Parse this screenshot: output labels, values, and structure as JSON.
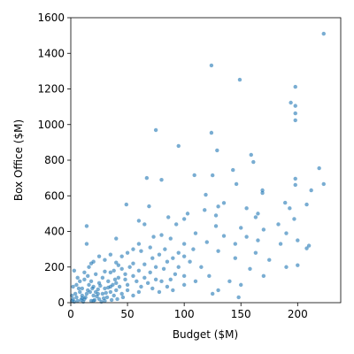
{
  "chart_data": {
    "type": "scatter",
    "xlabel": "Budget ($M)",
    "ylabel": "Box Office ($M)",
    "color": "#1f77b4",
    "xlim": [
      0,
      238
    ],
    "ylim": [
      0,
      1600
    ],
    "xticks": [
      0,
      50,
      100,
      150,
      200
    ],
    "yticks": [
      0,
      200,
      400,
      600,
      800,
      1000,
      1200,
      1400,
      1600
    ],
    "x": [
      223,
      124,
      149,
      198,
      194,
      198,
      198,
      198,
      75,
      95,
      124,
      129,
      159,
      161,
      143,
      219,
      109,
      67,
      80,
      125,
      198,
      198,
      223,
      212,
      169,
      169,
      119,
      146,
      49,
      69,
      189,
      208,
      193,
      135,
      130,
      155,
      103,
      118,
      165,
      128,
      163,
      86,
      60,
      65,
      197,
      183,
      170,
      150,
      128,
      100,
      93,
      14,
      14,
      40,
      80,
      73,
      110,
      135,
      155,
      145,
      190,
      200,
      210,
      208,
      185,
      165,
      120,
      100,
      88,
      60,
      55,
      70,
      83,
      108,
      130,
      163,
      145,
      175,
      190,
      200,
      158,
      170,
      150,
      140,
      130,
      148,
      115,
      122,
      125,
      100,
      95,
      90,
      85,
      78,
      72,
      62,
      50,
      45,
      35,
      25,
      30,
      20,
      18,
      40,
      55,
      65,
      75,
      82,
      95,
      105,
      100,
      100,
      110,
      88,
      80,
      70,
      60,
      52,
      45,
      38,
      30,
      22,
      15,
      12,
      8,
      5,
      3,
      10,
      15,
      20,
      25,
      28,
      33,
      35,
      40,
      42,
      48,
      50,
      55,
      58,
      62,
      65,
      68,
      72,
      75,
      78,
      85,
      90,
      92,
      60,
      55,
      50,
      45,
      40,
      38,
      35,
      32,
      30,
      28,
      25,
      22,
      20,
      18,
      16,
      14,
      12,
      10,
      8,
      6,
      5,
      4,
      3,
      2,
      1,
      7,
      9,
      11,
      13,
      17,
      19,
      21,
      23,
      24,
      26,
      27,
      29,
      31,
      33,
      36,
      37,
      39,
      41,
      43,
      46,
      18,
      16,
      12,
      6,
      2,
      1,
      20,
      30,
      10,
      24,
      35,
      48,
      42
    ],
    "y": [
      1510,
      1332,
      1252,
      1212,
      1123,
      1105,
      1063,
      1024,
      969,
      880,
      954,
      855,
      830,
      790,
      745,
      755,
      716,
      700,
      690,
      715,
      696,
      661,
      666,
      631,
      631,
      616,
      606,
      666,
      551,
      541,
      561,
      551,
      530,
      560,
      540,
      530,
      500,
      520,
      500,
      490,
      480,
      480,
      460,
      440,
      470,
      440,
      410,
      420,
      430,
      470,
      440,
      430,
      330,
      360,
      380,
      370,
      390,
      375,
      370,
      330,
      390,
      350,
      320,
      305,
      330,
      350,
      340,
      330,
      360,
      330,
      300,
      310,
      300,
      300,
      290,
      280,
      250,
      240,
      200,
      210,
      190,
      150,
      100,
      120,
      70,
      30,
      200,
      150,
      50,
      260,
      280,
      250,
      230,
      270,
      250,
      290,
      280,
      260,
      270,
      260,
      240,
      230,
      220,
      225,
      220,
      215,
      200,
      190,
      200,
      230,
      150,
      100,
      120,
      130,
      120,
      170,
      180,
      200,
      190,
      180,
      175,
      160,
      150,
      130,
      120,
      100,
      180,
      80,
      70,
      90,
      110,
      140,
      120,
      90,
      110,
      140,
      130,
      100,
      150,
      120,
      90,
      140,
      110,
      80,
      130,
      60,
      90,
      70,
      160,
      60,
      40,
      70,
      50,
      70,
      40,
      60,
      30,
      80,
      50,
      20,
      60,
      40,
      10,
      100,
      50,
      20,
      40,
      60,
      10,
      30,
      50,
      5,
      20,
      10,
      80,
      15,
      5,
      30,
      60,
      80,
      15,
      35,
      75,
      95,
      5,
      25,
      55,
      85,
      15,
      100,
      130,
      20,
      90,
      30,
      120,
      200,
      170,
      140,
      90,
      40,
      10,
      10,
      25,
      50,
      170,
      160,
      210
    ]
  }
}
